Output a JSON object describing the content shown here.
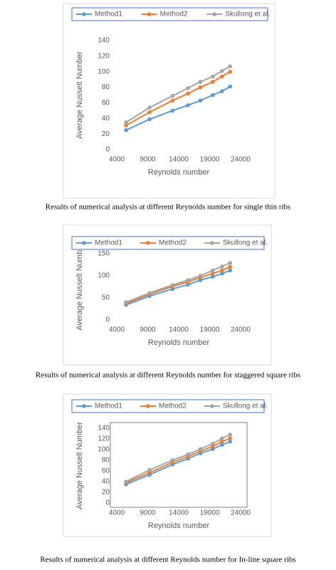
{
  "chart_data": [
    {
      "type": "line",
      "caption": "Results of numerical analysis at different Reynolds number for single thin ribs",
      "x_label": "Reynolds number",
      "y_label": "Average Nusselt Number",
      "x": [
        5500,
        9300,
        13000,
        15500,
        17500,
        19500,
        21000,
        22300
      ],
      "series": [
        {
          "name": "Method1",
          "color": "#5b9bd5",
          "values": [
            25,
            39,
            50,
            57,
            63,
            70,
            75,
            81
          ]
        },
        {
          "name": "Method2",
          "color": "#ed7d31",
          "values": [
            31,
            48,
            63,
            72,
            80,
            87,
            94,
            100
          ]
        },
        {
          "name": "Skullong et al.",
          "color": "#a5a5a5",
          "values": [
            35,
            54,
            69,
            79,
            87,
            94,
            101,
            107
          ]
        }
      ],
      "xlim": [
        4000,
        24000
      ],
      "xticks": [
        4000,
        9000,
        14000,
        19000,
        24000
      ],
      "ylim": [
        0,
        140
      ],
      "yticks": [
        0,
        20,
        40,
        60,
        80,
        100,
        120,
        140
      ],
      "grid": false,
      "legend": "top"
    },
    {
      "type": "line",
      "caption": "Results of numerical analysis at different Reynolds number for staggered square ribs",
      "x_label": "Reynolds number",
      "y_label": "Average Nusselt Number",
      "x": [
        5500,
        9300,
        13000,
        15500,
        17500,
        19500,
        21000,
        22300
      ],
      "series": [
        {
          "name": "Method1",
          "color": "#5b9bd5",
          "values": [
            34,
            54,
            70,
            80,
            90,
            98,
            105,
            112
          ]
        },
        {
          "name": "Method2",
          "color": "#ed7d31",
          "values": [
            37,
            58,
            76,
            86,
            96,
            105,
            112,
            120
          ]
        },
        {
          "name": "Skullong et al.",
          "color": "#a5a5a5",
          "values": [
            40,
            61,
            79,
            90,
            100,
            112,
            121,
            129
          ]
        }
      ],
      "xlim": [
        4000,
        24000
      ],
      "xticks": [
        4000,
        9000,
        14000,
        19000,
        24000
      ],
      "ylim": [
        0,
        150
      ],
      "yticks": [
        0,
        50,
        100,
        150
      ],
      "grid": false,
      "legend": "top"
    },
    {
      "type": "line",
      "caption": "Results of numerical analysis at different Reynolds number for In-line square ribs",
      "x_label": "Reynolds number",
      "y_label": "Average Nusselt Number",
      "x": [
        5500,
        9300,
        13000,
        15500,
        17500,
        19500,
        21000,
        22300
      ],
      "series": [
        {
          "name": "Method1",
          "color": "#5b9bd5",
          "values": [
            35,
            53,
            72,
            83,
            93,
            101,
            109,
            115
          ]
        },
        {
          "name": "Method2",
          "color": "#ed7d31",
          "values": [
            38,
            57,
            76,
            87,
            97,
            106,
            115,
            121
          ]
        },
        {
          "name": "Skullong et al.",
          "color": "#a5a5a5",
          "values": [
            40,
            62,
            80,
            91,
            101,
            111,
            121,
            128
          ]
        }
      ],
      "xlim": [
        4000,
        24000
      ],
      "xticks": [
        4000,
        9000,
        14000,
        19000,
        24000
      ],
      "ylim": [
        0,
        140
      ],
      "yticks": [
        0,
        20,
        40,
        60,
        80,
        100,
        120,
        140
      ],
      "grid": false,
      "legend": "top"
    }
  ]
}
